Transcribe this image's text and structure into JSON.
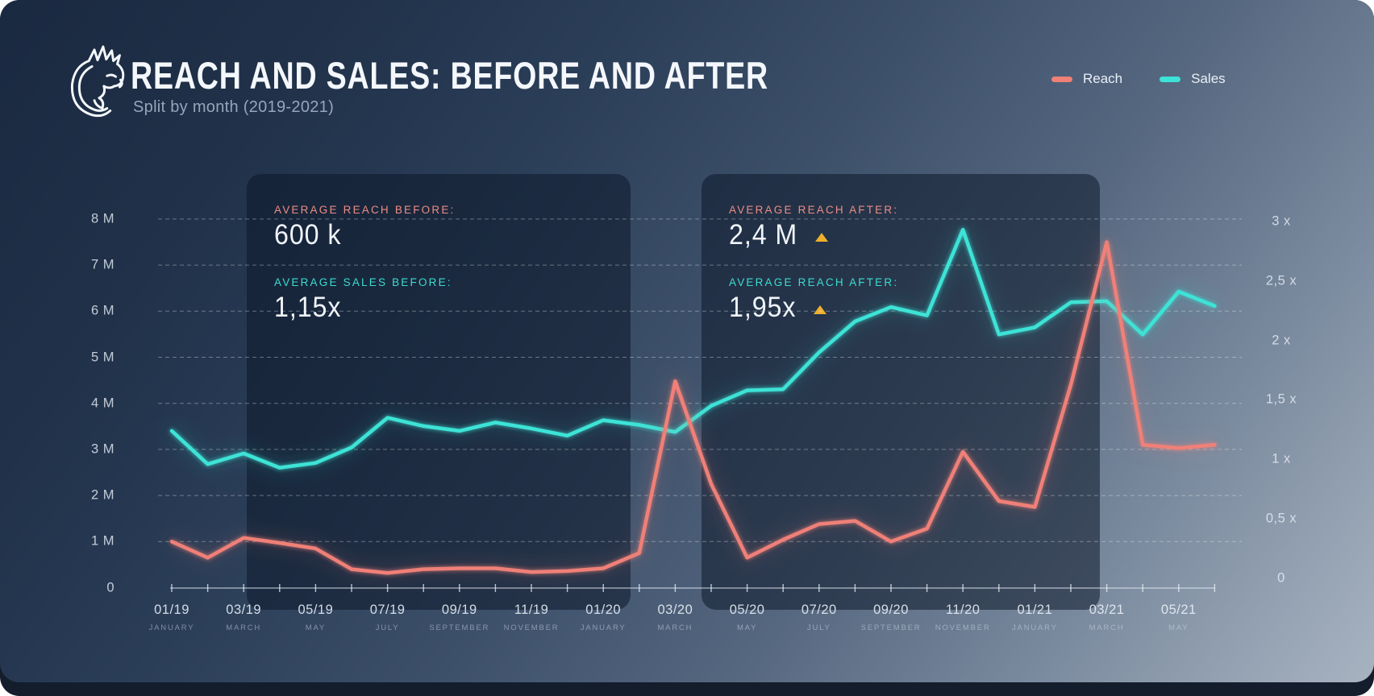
{
  "header": {
    "title": "REACH AND SALES: BEFORE AND AFTER",
    "subtitle": "Split by month (2019-2021)",
    "logo": "dragon-logo"
  },
  "legend": {
    "items": [
      {
        "label": "Reach",
        "color": "#ef8078"
      },
      {
        "label": "Sales",
        "color": "#3ce3d6"
      }
    ]
  },
  "panels": {
    "before": {
      "stats": [
        {
          "label": "AVERAGE REACH BEFORE:",
          "value": "600 k",
          "label_color": "#ec8d84",
          "trend_up": false
        },
        {
          "label": "AVERAGE SALES BEFORE:",
          "value": "1,15x",
          "label_color": "#3addcf",
          "trend_up": false
        }
      ]
    },
    "after": {
      "stats": [
        {
          "label": "AVERAGE REACH AFTER:",
          "value": "2,4 M",
          "label_color": "#ec8d84",
          "trend_up": true
        },
        {
          "label": "AVERAGE REACH AFTER:",
          "value": "1,95x",
          "label_color": "#3addcf",
          "trend_up": true
        }
      ]
    }
  },
  "colors": {
    "reach": "#ef8078",
    "sales": "#3ce3d6",
    "trend_triangle": "#edb02d",
    "gridline": "rgba(255,255,255,0.34)",
    "axis": "rgba(228,236,246,0.6)"
  },
  "chart_data": {
    "type": "line",
    "title": "REACH AND SALES: BEFORE AND AFTER",
    "x": [
      "01/19",
      "02/19",
      "03/19",
      "04/19",
      "05/19",
      "06/19",
      "07/19",
      "08/19",
      "09/19",
      "10/19",
      "11/19",
      "12/19",
      "01/20",
      "02/20",
      "03/20",
      "04/20",
      "05/20",
      "06/20",
      "07/20",
      "08/20",
      "09/20",
      "10/20",
      "11/20",
      "12/20",
      "01/21",
      "02/21",
      "03/21",
      "04/21",
      "05/21",
      "06/21"
    ],
    "series": [
      {
        "name": "Reach",
        "axis": "left",
        "unit": "M",
        "values": [
          1.0,
          0.65,
          1.08,
          0.97,
          0.85,
          0.4,
          0.32,
          0.4,
          0.42,
          0.42,
          0.34,
          0.36,
          0.42,
          0.75,
          4.48,
          2.25,
          0.65,
          1.04,
          1.38,
          1.45,
          1.0,
          1.28,
          2.95,
          1.88,
          1.75,
          4.4,
          7.5,
          3.1,
          3.03,
          3.1
        ]
      },
      {
        "name": "Sales",
        "axis": "right",
        "unit": "x",
        "values": [
          1.24,
          0.96,
          1.05,
          0.93,
          0.97,
          1.1,
          1.35,
          1.28,
          1.24,
          1.31,
          1.26,
          1.2,
          1.33,
          1.29,
          1.23,
          1.45,
          1.58,
          1.59,
          1.9,
          2.16,
          2.28,
          2.21,
          2.93,
          2.05,
          2.11,
          2.32,
          2.33,
          2.05,
          2.41,
          2.29
        ]
      }
    ],
    "left_axis": {
      "ticks": [
        {
          "text": "8 M",
          "value": 8
        },
        {
          "text": "7 M",
          "value": 7
        },
        {
          "text": "6 M",
          "value": 6
        },
        {
          "text": "5 M",
          "value": 5
        },
        {
          "text": "4 M",
          "value": 4
        },
        {
          "text": "3 M",
          "value": 3
        },
        {
          "text": "2 M",
          "value": 2
        },
        {
          "text": "1 M",
          "value": 1
        },
        {
          "text": "0",
          "value": 0
        }
      ],
      "range": [
        0,
        8.8
      ]
    },
    "right_axis": {
      "ticks": [
        {
          "text": "3 x",
          "value": 3
        },
        {
          "text": "2,5 x",
          "value": 2.5
        },
        {
          "text": "2 x",
          "value": 2
        },
        {
          "text": "1,5 x",
          "value": 1.5
        },
        {
          "text": "1 x",
          "value": 1
        },
        {
          "text": "0,5 x",
          "value": 0.5
        },
        {
          "text": "0",
          "value": 0
        }
      ],
      "range": [
        0,
        3.2
      ]
    },
    "x_tick_labels": [
      {
        "text": "01/19",
        "sub": "JANUARY"
      },
      {
        "text": "03/19",
        "sub": "MARCH"
      },
      {
        "text": "05/19",
        "sub": "MAY"
      },
      {
        "text": "07/19",
        "sub": "JULY"
      },
      {
        "text": "09/19",
        "sub": "SEPTEMBER"
      },
      {
        "text": "11/19",
        "sub": "NOVEMBER"
      },
      {
        "text": "01/20",
        "sub": "JANUARY"
      },
      {
        "text": "03/20",
        "sub": "MARCH"
      },
      {
        "text": "05/20",
        "sub": "MAY"
      },
      {
        "text": "07/20",
        "sub": "JULY"
      },
      {
        "text": "09/20",
        "sub": "SEPTEMBER"
      },
      {
        "text": "11/20",
        "sub": "NOVEMBER"
      },
      {
        "text": "01/21",
        "sub": "JANUARY"
      },
      {
        "text": "03/21",
        "sub": "MARCH"
      },
      {
        "text": "05/21",
        "sub": "MAY"
      }
    ],
    "grid": "horizontal-dashed",
    "legend_position": "top-right"
  }
}
